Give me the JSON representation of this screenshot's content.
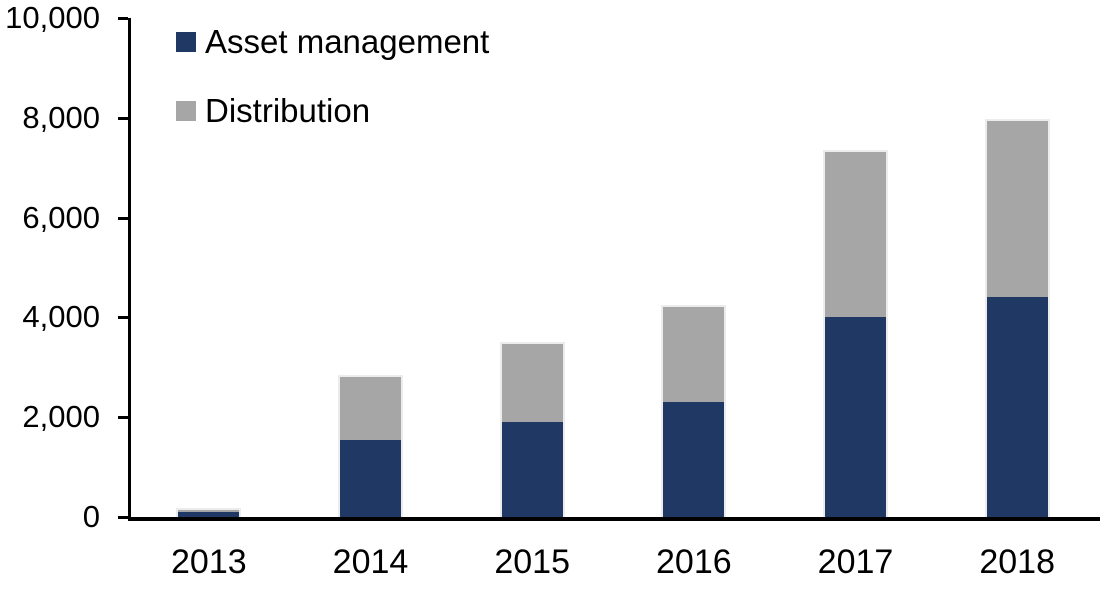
{
  "chart_data": {
    "type": "bar",
    "stacked": true,
    "title": "",
    "xlabel": "",
    "ylabel": "",
    "categories": [
      "2013",
      "2014",
      "2015",
      "2016",
      "2017",
      "2018"
    ],
    "series": [
      {
        "name": "Asset management",
        "color": "#1F3864",
        "values": [
          100,
          1550,
          1900,
          2300,
          4000,
          4400
        ]
      },
      {
        "name": "Distribution",
        "color": "#A6A6A6",
        "values": [
          90,
          1300,
          1600,
          1950,
          3350,
          3570
        ]
      }
    ],
    "totals": [
      190,
      2850,
      3500,
      4250,
      7350,
      7970
    ],
    "ylim": [
      0,
      10000
    ],
    "ytick_step": 2000,
    "ytick_labels": [
      "0",
      "2,000",
      "4,000",
      "6,000",
      "8,000",
      "10,000"
    ],
    "grid": false,
    "legend_position": "top-left-inside",
    "background_color": "#FFFFFF",
    "axis_color": "#000000",
    "text_color": "#000000"
  }
}
